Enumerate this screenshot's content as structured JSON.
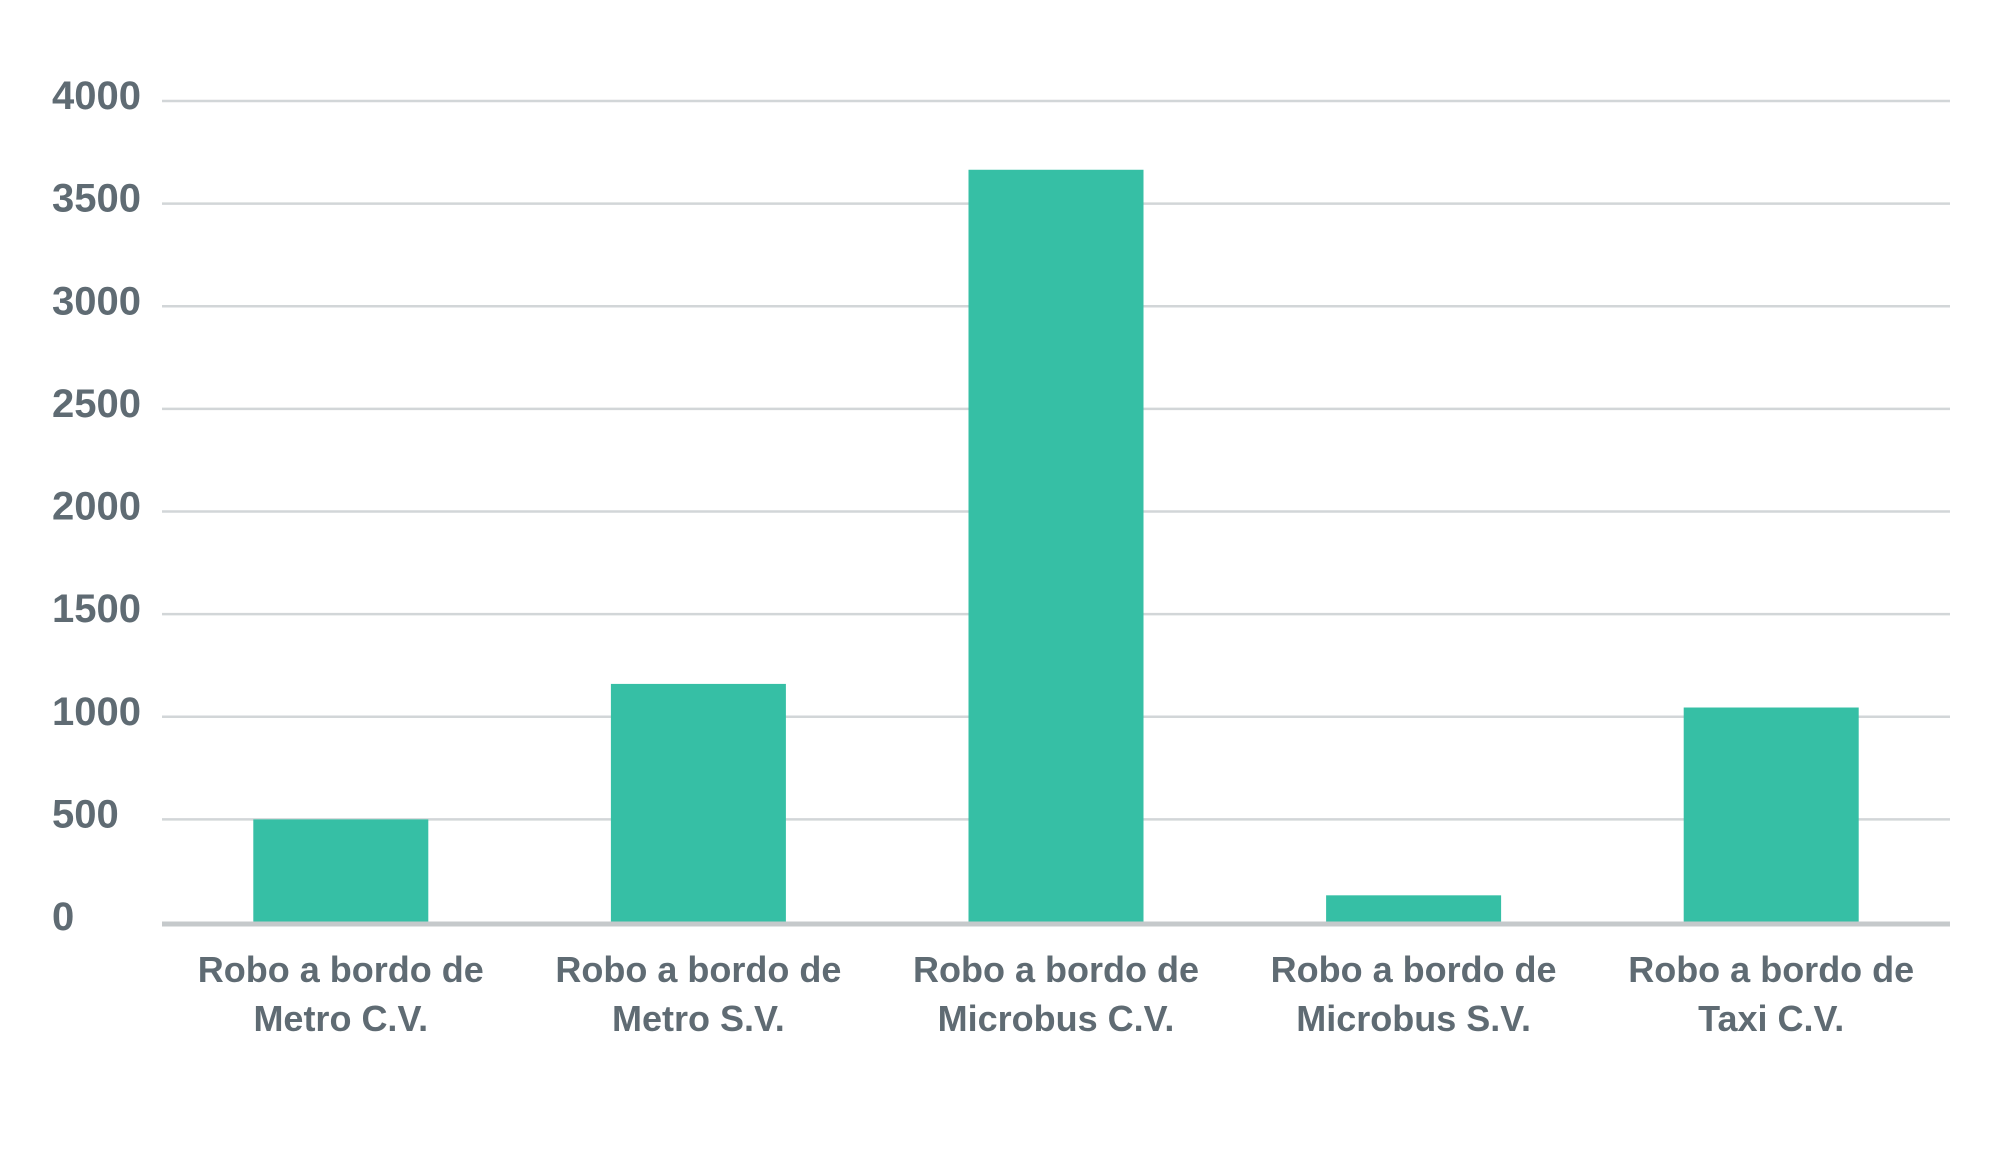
{
  "chart_data": {
    "type": "bar",
    "categories": [
      [
        "Robo a bordo de",
        "Metro C.V."
      ],
      [
        "Robo a bordo de",
        "Metro S.V."
      ],
      [
        "Robo a bordo de",
        "Microbus C.V."
      ],
      [
        "Robo a bordo de",
        "Microbus S.V."
      ],
      [
        "Robo a bordo de",
        "Taxi C.V."
      ]
    ],
    "values": [
      500,
      1160,
      3665,
      130,
      1045
    ],
    "y_ticks": [
      "0",
      "500",
      "1000",
      "1500",
      "2000",
      "2500",
      "3000",
      "3500",
      "4000"
    ],
    "ylim": [
      0,
      4000
    ],
    "grid": true,
    "legend": "none",
    "bar_color": "#36bfa5",
    "title": "",
    "xlabel": "",
    "ylabel": ""
  }
}
